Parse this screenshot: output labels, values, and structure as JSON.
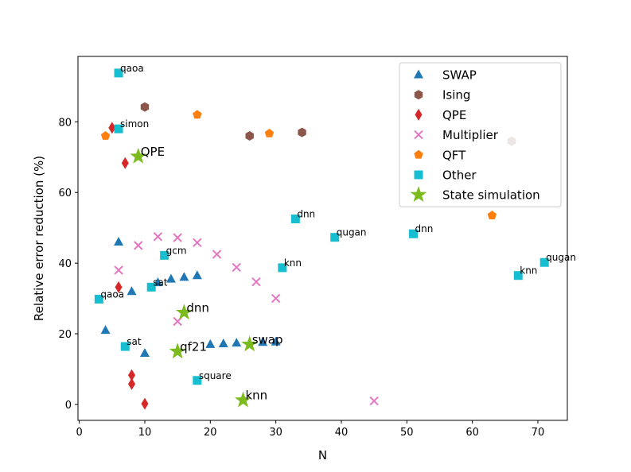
{
  "chart_data": {
    "type": "scatter",
    "xlabel": "N",
    "ylabel": "Relative error reduction (%)",
    "xlim": [
      -0.2,
      74.5
    ],
    "ylim": [
      -4.5,
      98.5
    ],
    "xticks": [
      0,
      10,
      20,
      30,
      40,
      50,
      60,
      70
    ],
    "yticks": [
      0,
      20,
      40,
      60,
      80
    ],
    "legend_position": "top-right",
    "series": [
      {
        "name": "SWAP",
        "marker": "triangle",
        "color": "#1f77b4",
        "points": [
          [
            4,
            21
          ],
          [
            6,
            46
          ],
          [
            8,
            32
          ],
          [
            10,
            14.5
          ],
          [
            12,
            34.5
          ],
          [
            14,
            35.5
          ],
          [
            16,
            36
          ],
          [
            18,
            36.5
          ],
          [
            20,
            17
          ],
          [
            22,
            17.2
          ],
          [
            24,
            17.4
          ],
          [
            28,
            17.6
          ],
          [
            30,
            17.7
          ]
        ]
      },
      {
        "name": "Ising",
        "marker": "hexagon",
        "color": "#8c564b",
        "points": [
          [
            10,
            84.2
          ],
          [
            26,
            76
          ],
          [
            34,
            77
          ],
          [
            66,
            74.5
          ]
        ]
      },
      {
        "name": "QPE",
        "marker": "diamond",
        "color": "#d62728",
        "points": [
          [
            5,
            78.3
          ],
          [
            7,
            68.3
          ],
          [
            6,
            33.2
          ],
          [
            8,
            8.3
          ],
          [
            8,
            5.8
          ],
          [
            10,
            0.2
          ]
        ]
      },
      {
        "name": "Multiplier",
        "marker": "x",
        "color": "#e377c2",
        "points": [
          [
            6,
            38
          ],
          [
            9,
            45
          ],
          [
            12,
            47.5
          ],
          [
            15,
            47.2
          ],
          [
            18,
            45.8
          ],
          [
            21,
            42.5
          ],
          [
            24,
            38.8
          ],
          [
            27,
            34.7
          ],
          [
            30,
            30
          ],
          [
            15,
            23.5
          ],
          [
            45,
            1
          ]
        ]
      },
      {
        "name": "QFT",
        "marker": "pentagon",
        "color": "#ff7f0e",
        "points": [
          [
            4,
            76
          ],
          [
            18,
            82
          ],
          [
            29,
            76.7
          ],
          [
            63,
            53.5
          ]
        ]
      },
      {
        "name": "Other",
        "marker": "square",
        "color": "#17becf",
        "points": [
          [
            6,
            93.8
          ],
          [
            6,
            78
          ],
          [
            3,
            29.8
          ],
          [
            7,
            16.4
          ],
          [
            11,
            33.2
          ],
          [
            13,
            42.2
          ],
          [
            18,
            6.8
          ],
          [
            31,
            38.7
          ],
          [
            33,
            52.5
          ],
          [
            39,
            47.3
          ],
          [
            51,
            48.3
          ],
          [
            67,
            36.5
          ],
          [
            71,
            40.2
          ]
        ]
      },
      {
        "name": "State simulation",
        "marker": "star",
        "color": "#7cbb1e",
        "points": [
          [
            9,
            70.2
          ],
          [
            16,
            26
          ],
          [
            15,
            15
          ],
          [
            26,
            17
          ],
          [
            25,
            1.2
          ]
        ]
      }
    ],
    "annotations": [
      {
        "text": "qaoa",
        "x": 6,
        "y": 93.8,
        "size": "small"
      },
      {
        "text": "simon",
        "x": 6,
        "y": 78,
        "size": "small"
      },
      {
        "text": "qaoa",
        "x": 3,
        "y": 29.8,
        "size": "small"
      },
      {
        "text": "sat",
        "x": 7,
        "y": 16.4,
        "size": "small"
      },
      {
        "text": "sat",
        "x": 11,
        "y": 33.2,
        "size": "small"
      },
      {
        "text": "gcm",
        "x": 13,
        "y": 42.2,
        "size": "small"
      },
      {
        "text": "square",
        "x": 18,
        "y": 6.8,
        "size": "small"
      },
      {
        "text": "knn",
        "x": 31,
        "y": 38.7,
        "size": "small"
      },
      {
        "text": "dnn",
        "x": 33,
        "y": 52.5,
        "size": "small"
      },
      {
        "text": "qugan",
        "x": 39,
        "y": 47.3,
        "size": "small"
      },
      {
        "text": "dnn",
        "x": 51,
        "y": 48.3,
        "size": "small"
      },
      {
        "text": "knn",
        "x": 67,
        "y": 36.5,
        "size": "small"
      },
      {
        "text": "qugan",
        "x": 71,
        "y": 40.2,
        "size": "small"
      },
      {
        "text": "QPE",
        "x": 9,
        "y": 70.2,
        "size": "large"
      },
      {
        "text": "dnn",
        "x": 16,
        "y": 26,
        "size": "large"
      },
      {
        "text": "qf21",
        "x": 15,
        "y": 15,
        "size": "large"
      },
      {
        "text": "swap",
        "x": 26,
        "y": 17,
        "size": "large"
      },
      {
        "text": "knn",
        "x": 25,
        "y": 1.2,
        "size": "large"
      }
    ]
  }
}
